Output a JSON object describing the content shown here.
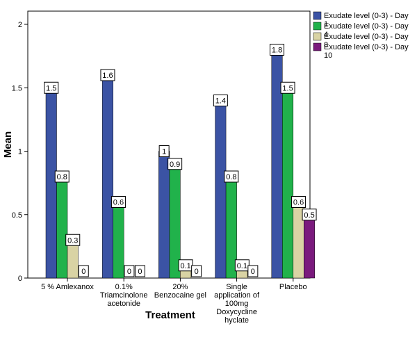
{
  "chart_data": {
    "type": "bar",
    "title": "",
    "xlabel": "Treatment",
    "ylabel": "Mean",
    "ylim": [
      0,
      2
    ],
    "yticks": [
      "0",
      "0.5",
      "1",
      "1.5",
      "2"
    ],
    "grid": false,
    "legend_position": "top-right",
    "categories": [
      [
        "5 % Amlexanox"
      ],
      [
        "0.1%",
        "Triamcinolone",
        "acetonide"
      ],
      [
        "20%",
        "Benzocaine gel"
      ],
      [
        "Single",
        "application of",
        "100mg",
        "Doxycycline",
        "hyclate"
      ],
      [
        "Placebo"
      ]
    ],
    "series": [
      {
        "name": "Exudate level (0-3) - Day 1",
        "color": "#3B53A4",
        "values": [
          1.5,
          1.6,
          1.0,
          1.4,
          1.8
        ],
        "labels": [
          "1.5",
          "1.6",
          "1",
          "1.4",
          "1.8"
        ]
      },
      {
        "name": "Exudate level (0-3) - Day 4",
        "color": "#21B24B",
        "values": [
          0.8,
          0.6,
          0.9,
          0.8,
          1.5
        ],
        "labels": [
          "0.8",
          "0.6",
          "0.9",
          "0.8",
          "1.5"
        ]
      },
      {
        "name": "Exudate level (0-3) - Day 8",
        "color": "#D9D3A4",
        "values": [
          0.3,
          0.0,
          0.1,
          0.1,
          0.6
        ],
        "labels": [
          "0.3",
          "0",
          "0.1",
          "0.1",
          "0.6"
        ]
      },
      {
        "name": "Exudate level (0-3) - Day 10",
        "color": "#7A1A7D",
        "values": [
          0.0,
          0.0,
          0.0,
          0.0,
          0.5
        ],
        "labels": [
          "0",
          "0",
          "0",
          "0",
          "0.5"
        ]
      }
    ]
  }
}
